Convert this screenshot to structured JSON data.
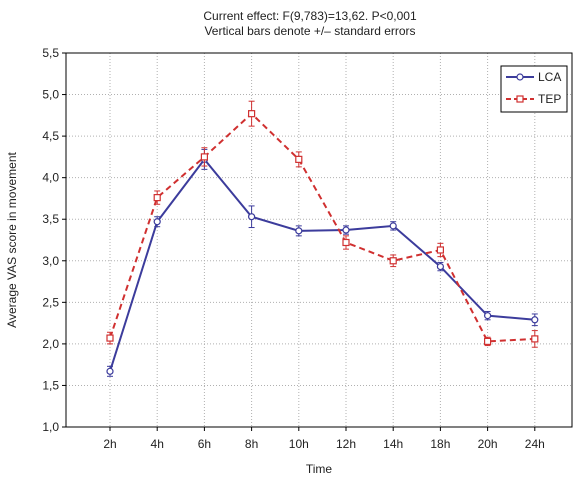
{
  "chart_data": {
    "type": "line",
    "title": "Current effect: F(9,783)=13,62. P<0,001",
    "subtitle": "Vertical bars denote +/– standard errors",
    "xlabel": "Time",
    "ylabel": "Average VAS score in movement",
    "categories": [
      "2h",
      "4h",
      "6h",
      "8h",
      "10h",
      "12h",
      "14h",
      "18h",
      "20h",
      "24h"
    ],
    "yticks": [
      "1,0",
      "1,5",
      "2,0",
      "2,5",
      "3,0",
      "3,5",
      "4,0",
      "4,5",
      "5,0",
      "5,5"
    ],
    "ylim": [
      1.0,
      5.5
    ],
    "grid": true,
    "legend_position": "top-right",
    "series": [
      {
        "name": "LCA",
        "color": "#3c3c9c",
        "line_style": "solid",
        "marker": "circle",
        "values": [
          1.67,
          3.47,
          4.22,
          3.53,
          3.36,
          3.37,
          3.42,
          2.93,
          2.34,
          2.29
        ],
        "errors": [
          0.06,
          0.06,
          0.12,
          0.13,
          0.06,
          0.05,
          0.05,
          0.05,
          0.05,
          0.07
        ]
      },
      {
        "name": "TEP",
        "color": "#d03030",
        "line_style": "dashed",
        "marker": "square",
        "values": [
          2.07,
          3.76,
          4.25,
          4.77,
          4.22,
          3.22,
          3.0,
          3.13,
          2.03,
          2.06
        ],
        "errors": [
          0.07,
          0.08,
          0.11,
          0.15,
          0.09,
          0.08,
          0.07,
          0.08,
          0.05,
          0.1
        ]
      }
    ]
  }
}
